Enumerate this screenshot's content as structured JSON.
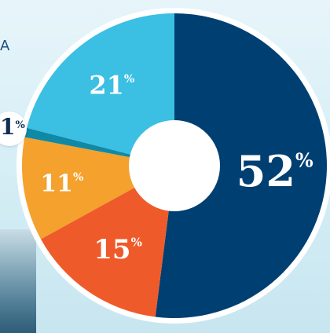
{
  "corner_text": "A",
  "chart_data": {
    "type": "pie",
    "donut": true,
    "title": "",
    "slices": [
      {
        "label": "52%",
        "value": 52,
        "color": "#003f72"
      },
      {
        "label": "15%",
        "value": 15,
        "color": "#ef5a2a"
      },
      {
        "label": "11%",
        "value": 11,
        "color": "#f4a12d"
      },
      {
        "label": "1%",
        "value": 1,
        "color": "#0f89a5"
      },
      {
        "label": "21%",
        "value": 21,
        "color": "#3bbfe3"
      }
    ],
    "callout_label": "1",
    "percent_symbol": "%"
  }
}
